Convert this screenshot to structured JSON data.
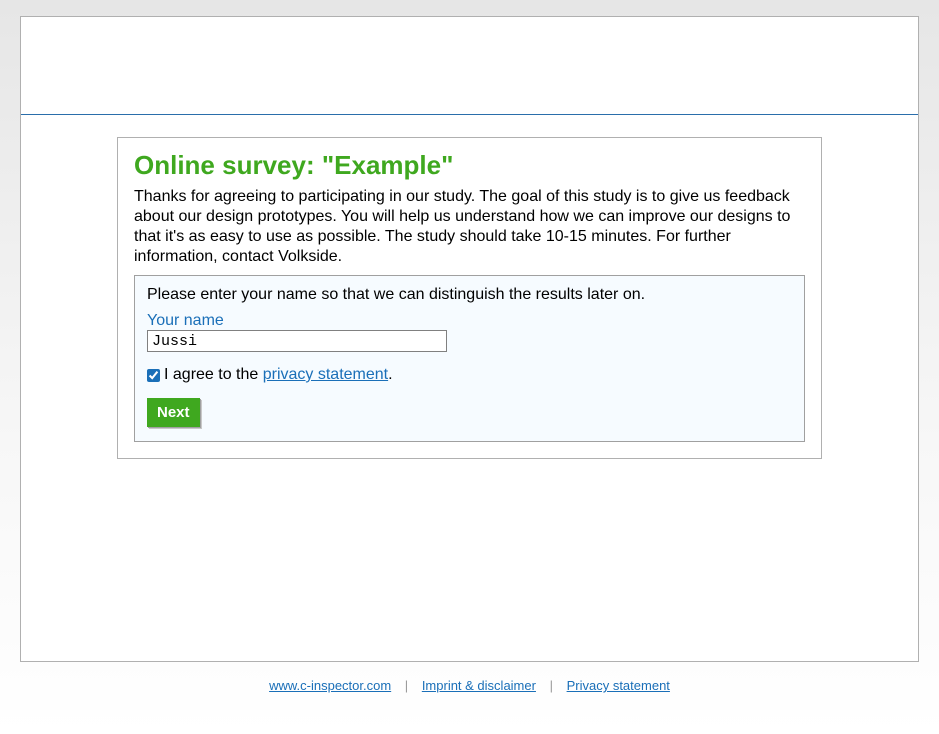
{
  "survey": {
    "title": "Online survey: \"Example\"",
    "intro": "Thanks for agreeing to participating in our study. The goal of this study is to give us feedback about our design prototypes. You will help us understand how we can improve our designs to that it's as easy to use as possible. The study should take 10-15 minutes. For further information, contact Volkside."
  },
  "form": {
    "instruction": "Please enter your name so that we can distinguish the results later on.",
    "name_label": "Your name",
    "name_value": "Jussi",
    "agree_prefix": "I agree to the ",
    "agree_link_text": "privacy statement",
    "agree_suffix": ".",
    "agree_checked": true,
    "next_button_label": "Next"
  },
  "footer": {
    "link1": "www.c-inspector.com",
    "link2": "Imprint & disclaimer",
    "link3": "Privacy statement",
    "separator": "|"
  },
  "colors": {
    "title_green": "#3fa81f",
    "link_blue": "#1a6fb8",
    "border_gray": "#b0b0b0",
    "panel_bg": "#f6fbff"
  }
}
